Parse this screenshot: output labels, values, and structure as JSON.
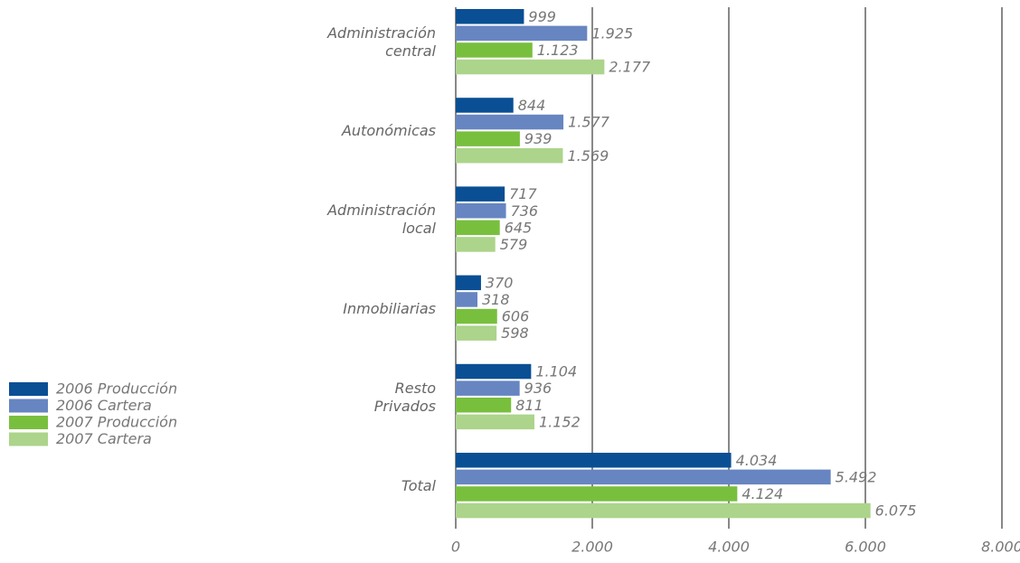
{
  "chart_data": {
    "type": "bar",
    "orientation": "horizontal",
    "categories": [
      "Administración\ncentral",
      "Autonómicas",
      "Administración\nlocal",
      "Inmobiliarias",
      "Resto\nPrivados",
      "Total"
    ],
    "series": [
      {
        "name": "2006 Producción",
        "color": "#0a4f94",
        "values": [
          999,
          844,
          717,
          370,
          1104,
          4034
        ],
        "value_labels": [
          "999",
          "844",
          "717",
          "370",
          "1.104",
          "4.034"
        ]
      },
      {
        "name": "2006 Cartera",
        "color": "#6785c1",
        "values": [
          1925,
          1577,
          736,
          318,
          936,
          5492
        ],
        "value_labels": [
          "1.925",
          "1.577",
          "736",
          "318",
          "936",
          "5.492"
        ]
      },
      {
        "name": "2007 Producción",
        "color": "#79bf3e",
        "values": [
          1123,
          939,
          645,
          606,
          811,
          4124
        ],
        "value_labels": [
          "1.123",
          "939",
          "645",
          "606",
          "811",
          "4.124"
        ]
      },
      {
        "name": "2007 Cartera",
        "color": "#acd48a",
        "values": [
          2177,
          1569,
          579,
          598,
          1152,
          6075
        ],
        "value_labels": [
          "2.177",
          "1.569",
          "579",
          "598",
          "1.152",
          "6.075"
        ]
      }
    ],
    "xlim": [
      0,
      8000
    ],
    "xticks": [
      0,
      {
        "value": 2000,
        "label": "2.000"
      },
      {
        "value": 4000,
        "label": "4.000"
      },
      {
        "value": 6000,
        "label": "6.000"
      },
      {
        "value": 8000,
        "label": "8.000"
      }
    ],
    "grid": true,
    "legend": "left"
  }
}
